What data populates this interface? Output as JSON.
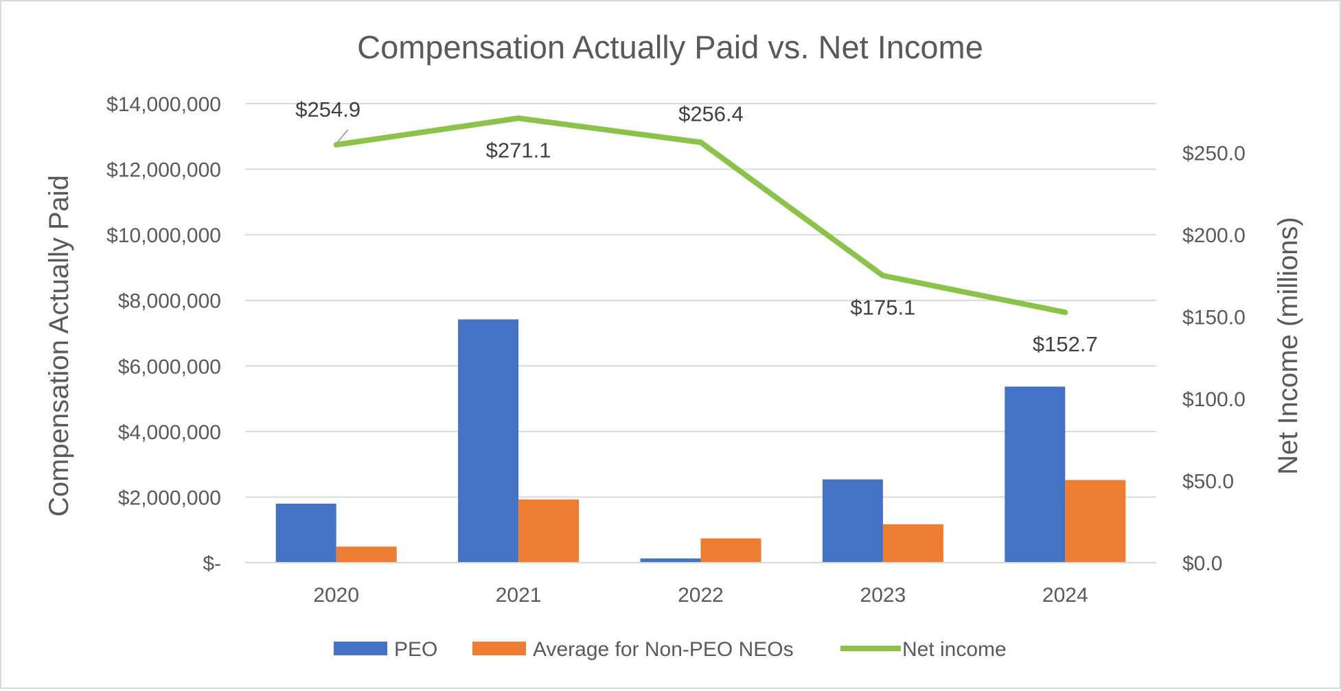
{
  "chart_data": {
    "type": "bar",
    "title": "Compensation Actually Paid vs. Net Income",
    "categories": [
      "2020",
      "2021",
      "2022",
      "2023",
      "2024"
    ],
    "series": [
      {
        "name": "PEO",
        "type": "bar",
        "axis": "left",
        "color": "#4472C4",
        "values": [
          1800000,
          7420000,
          130000,
          2540000,
          5370000
        ]
      },
      {
        "name": "Average for Non-PEO NEOs",
        "type": "bar",
        "axis": "left",
        "color": "#ED7D31",
        "values": [
          490000,
          1930000,
          740000,
          1170000,
          2520000
        ]
      },
      {
        "name": "Net income",
        "type": "line",
        "axis": "right",
        "color": "#8BC34A",
        "values": [
          254.9,
          271.1,
          256.4,
          175.1,
          152.7
        ],
        "labels": [
          "$254.9",
          "$271.1",
          "$256.4",
          "$175.1",
          "$152.7"
        ]
      }
    ],
    "y_left": {
      "label": "Compensation Actually Paid",
      "ylim": [
        0,
        14000000
      ],
      "ticks": [
        0,
        2000000,
        4000000,
        6000000,
        8000000,
        10000000,
        12000000,
        14000000
      ],
      "tick_labels": [
        "$-",
        "$2,000,000",
        "$4,000,000",
        "$6,000,000",
        "$8,000,000",
        "$10,000,000",
        "$12,000,000",
        "$14,000,000"
      ]
    },
    "y_right": {
      "label": "Net Income (millions)",
      "ylim": [
        0,
        280
      ],
      "ticks": [
        0,
        50,
        100,
        150,
        200,
        250
      ],
      "tick_labels": [
        "$0.0",
        "$50.0",
        "$100.0",
        "$150.0",
        "$200.0",
        "$250.0"
      ]
    },
    "grid": true,
    "legend": "bottom"
  }
}
